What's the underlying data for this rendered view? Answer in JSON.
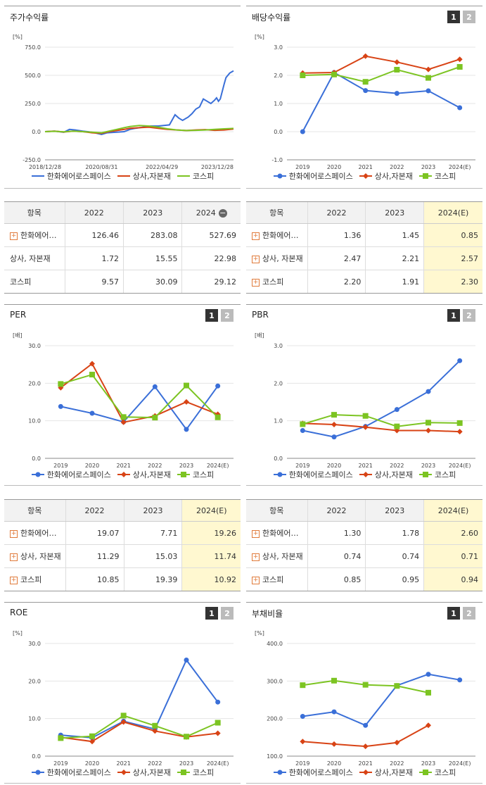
{
  "legend": {
    "s1": "한화에어로스페이스",
    "s2": "상사,자본재",
    "s3": "코스피"
  },
  "colors": {
    "s1": "#3a6fd8",
    "s2": "#d84315",
    "s3": "#7cc422"
  },
  "buttons": {
    "b1": "1",
    "b2": "2"
  },
  "panels": {
    "stock": {
      "title": "주가수익률"
    },
    "div": {
      "title": "배당수익률"
    },
    "per": {
      "title": "PER"
    },
    "pbr": {
      "title": "PBR"
    },
    "roe": {
      "title": "ROE"
    },
    "debt": {
      "title": "부채비율"
    }
  },
  "tables": {
    "stock": {
      "headers": [
        "항목",
        "2022",
        "2023",
        "2024"
      ],
      "rows": [
        {
          "name": "한화에어…",
          "v": [
            "126.46",
            "283.08",
            "527.69"
          ]
        },
        {
          "name": "상사, 자본재",
          "v": [
            "1.72",
            "15.55",
            "22.98"
          ]
        },
        {
          "name": "코스피",
          "v": [
            "9.57",
            "30.09",
            "29.12"
          ]
        }
      ]
    },
    "div": {
      "headers": [
        "항목",
        "2022",
        "2023",
        "2024(E)"
      ],
      "rows": [
        {
          "name": "한화에어…",
          "v": [
            "1.36",
            "1.45",
            "0.85"
          ]
        },
        {
          "name": "상사, 자본재",
          "v": [
            "2.47",
            "2.21",
            "2.57"
          ]
        },
        {
          "name": "코스피",
          "v": [
            "2.20",
            "1.91",
            "2.30"
          ]
        }
      ]
    },
    "per": {
      "headers": [
        "항목",
        "2022",
        "2023",
        "2024(E)"
      ],
      "rows": [
        {
          "name": "한화에어…",
          "v": [
            "19.07",
            "7.71",
            "19.26"
          ]
        },
        {
          "name": "상사, 자본재",
          "v": [
            "11.29",
            "15.03",
            "11.74"
          ]
        },
        {
          "name": "코스피",
          "v": [
            "10.85",
            "19.39",
            "10.92"
          ]
        }
      ]
    },
    "pbr": {
      "headers": [
        "항목",
        "2022",
        "2023",
        "2024(E)"
      ],
      "rows": [
        {
          "name": "한화에어…",
          "v": [
            "1.30",
            "1.78",
            "2.60"
          ]
        },
        {
          "name": "상사, 자본재",
          "v": [
            "0.74",
            "0.74",
            "0.71"
          ]
        },
        {
          "name": "코스피",
          "v": [
            "0.85",
            "0.95",
            "0.94"
          ]
        }
      ]
    }
  },
  "chart_data": [
    {
      "id": "stock",
      "type": "line",
      "ylabel": "[%]",
      "ylim": [
        -250,
        750
      ],
      "yticks": [
        "750.0",
        "500.0",
        "250.0",
        "0.0",
        "-250.0"
      ],
      "ytick_values": [
        750,
        500,
        250,
        0,
        -250
      ],
      "xtick_labels": [
        "2018/12/28",
        "2020/08/31",
        "2022/04/29",
        "2023/12/28"
      ],
      "x_range": [
        0,
        100
      ],
      "xtick_pos": [
        0,
        30,
        62,
        100
      ],
      "series": [
        {
          "key": "s1",
          "points": [
            [
              0,
              0
            ],
            [
              5,
              5
            ],
            [
              10,
              -5
            ],
            [
              13,
              20
            ],
            [
              16,
              15
            ],
            [
              20,
              5
            ],
            [
              25,
              -5
            ],
            [
              30,
              -25
            ],
            [
              33,
              -10
            ],
            [
              38,
              -5
            ],
            [
              42,
              0
            ],
            [
              45,
              20
            ],
            [
              48,
              30
            ],
            [
              52,
              40
            ],
            [
              56,
              50
            ],
            [
              60,
              50
            ],
            [
              63,
              55
            ],
            [
              66,
              60
            ],
            [
              69,
              150
            ],
            [
              71,
              120
            ],
            [
              73,
              100
            ],
            [
              76,
              130
            ],
            [
              78,
              160
            ],
            [
              80,
              200
            ],
            [
              82,
              220
            ],
            [
              84,
              290
            ],
            [
              86,
              270
            ],
            [
              88,
              250
            ],
            [
              90,
              280
            ],
            [
              91,
              300
            ],
            [
              92,
              270
            ],
            [
              93,
              290
            ],
            [
              95,
              420
            ],
            [
              96,
              480
            ],
            [
              98,
              520
            ],
            [
              100,
              540
            ]
          ]
        },
        {
          "key": "s2",
          "points": [
            [
              0,
              0
            ],
            [
              5,
              5
            ],
            [
              10,
              -3
            ],
            [
              15,
              5
            ],
            [
              20,
              0
            ],
            [
              25,
              -10
            ],
            [
              30,
              -15
            ],
            [
              34,
              0
            ],
            [
              38,
              10
            ],
            [
              42,
              20
            ],
            [
              45,
              30
            ],
            [
              50,
              35
            ],
            [
              55,
              40
            ],
            [
              60,
              30
            ],
            [
              65,
              20
            ],
            [
              70,
              15
            ],
            [
              75,
              10
            ],
            [
              80,
              15
            ],
            [
              85,
              18
            ],
            [
              90,
              12
            ],
            [
              95,
              15
            ],
            [
              100,
              23
            ]
          ]
        },
        {
          "key": "s3",
          "points": [
            [
              0,
              0
            ],
            [
              5,
              3
            ],
            [
              10,
              -2
            ],
            [
              15,
              5
            ],
            [
              20,
              0
            ],
            [
              25,
              -5
            ],
            [
              30,
              -10
            ],
            [
              34,
              5
            ],
            [
              38,
              20
            ],
            [
              42,
              35
            ],
            [
              45,
              45
            ],
            [
              50,
              55
            ],
            [
              55,
              50
            ],
            [
              60,
              40
            ],
            [
              65,
              25
            ],
            [
              70,
              15
            ],
            [
              75,
              10
            ],
            [
              80,
              12
            ],
            [
              85,
              15
            ],
            [
              90,
              20
            ],
            [
              95,
              25
            ],
            [
              100,
              29
            ]
          ]
        }
      ]
    },
    {
      "id": "div",
      "type": "line",
      "ylabel": "[%]",
      "ylim": [
        -1,
        3
      ],
      "yticks": [
        "3.0",
        "2.0",
        "1.0",
        "0.0",
        "-1.0"
      ],
      "ytick_values": [
        3,
        2,
        1,
        0,
        -1
      ],
      "categories": [
        "2019",
        "2020",
        "2021",
        "2022",
        "2023",
        "2024(E)"
      ],
      "series": [
        {
          "key": "s1",
          "values": [
            0.0,
            2.1,
            1.46,
            1.36,
            1.45,
            0.85
          ]
        },
        {
          "key": "s2",
          "values": [
            2.08,
            2.1,
            2.68,
            2.47,
            2.21,
            2.57
          ]
        },
        {
          "key": "s3",
          "values": [
            2.0,
            2.03,
            1.77,
            2.2,
            1.91,
            2.3
          ]
        }
      ]
    },
    {
      "id": "per",
      "type": "line",
      "ylabel": "[배]",
      "ylim": [
        0,
        30
      ],
      "yticks": [
        "30.0",
        "20.0",
        "10.0",
        "0.0"
      ],
      "ytick_values": [
        30,
        20,
        10,
        0
      ],
      "categories": [
        "2019",
        "2020",
        "2021",
        "2022",
        "2023",
        "2024(E)"
      ],
      "series": [
        {
          "key": "s1",
          "values": [
            13.8,
            12.0,
            9.7,
            19.07,
            7.71,
            19.26
          ]
        },
        {
          "key": "s2",
          "values": [
            18.8,
            25.2,
            9.6,
            11.29,
            15.03,
            11.74
          ]
        },
        {
          "key": "s3",
          "values": [
            19.8,
            22.3,
            11.0,
            10.85,
            19.39,
            10.92
          ]
        }
      ]
    },
    {
      "id": "pbr",
      "type": "line",
      "ylabel": "[배]",
      "ylim": [
        0,
        3
      ],
      "yticks": [
        "3.0",
        "2.0",
        "1.0",
        "0.0"
      ],
      "ytick_values": [
        3,
        2,
        1,
        0
      ],
      "categories": [
        "2019",
        "2020",
        "2021",
        "2022",
        "2023",
        "2024(E)"
      ],
      "series": [
        {
          "key": "s1",
          "values": [
            0.74,
            0.57,
            0.85,
            1.3,
            1.78,
            2.6
          ]
        },
        {
          "key": "s2",
          "values": [
            0.93,
            0.9,
            0.83,
            0.74,
            0.74,
            0.71
          ]
        },
        {
          "key": "s3",
          "values": [
            0.91,
            1.16,
            1.13,
            0.85,
            0.95,
            0.94
          ]
        }
      ]
    },
    {
      "id": "roe",
      "type": "line",
      "ylabel": "[%]",
      "ylim": [
        0,
        30
      ],
      "yticks": [
        "30.0",
        "20.0",
        "10.0",
        "0.0"
      ],
      "ytick_values": [
        30,
        20,
        10,
        0
      ],
      "categories": [
        "2019",
        "2020",
        "2021",
        "2022",
        "2023",
        "2024(E)"
      ],
      "series": [
        {
          "key": "s1",
          "values": [
            5.6,
            4.9,
            9.3,
            7.2,
            25.6,
            14.4
          ]
        },
        {
          "key": "s2",
          "values": [
            5.0,
            3.9,
            9.1,
            6.7,
            5.1,
            6.1
          ]
        },
        {
          "key": "s3",
          "values": [
            4.8,
            5.3,
            10.8,
            8.1,
            5.2,
            8.9
          ]
        }
      ]
    },
    {
      "id": "debt",
      "type": "line",
      "ylabel": "[%]",
      "ylim": [
        100,
        400
      ],
      "yticks": [
        "400.0",
        "300.0",
        "200.0",
        "100.0"
      ],
      "ytick_values": [
        400,
        300,
        200,
        100
      ],
      "categories": [
        "2019",
        "2020",
        "2021",
        "2022",
        "2023",
        "2024(E)"
      ],
      "series": [
        {
          "key": "s1",
          "values": [
            206,
            218,
            182,
            288,
            318,
            303
          ]
        },
        {
          "key": "s2",
          "values": [
            139,
            132,
            126,
            136,
            182,
            null
          ]
        },
        {
          "key": "s3",
          "values": [
            289,
            301,
            290,
            287,
            269,
            null
          ]
        }
      ]
    }
  ]
}
